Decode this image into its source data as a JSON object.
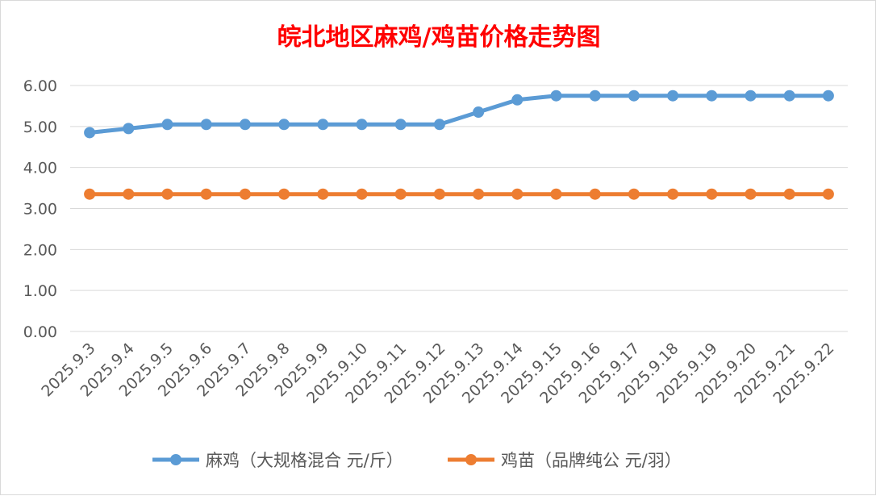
{
  "chart_data": {
    "type": "line",
    "title": "皖北地区麻鸡/鸡苗价格走势图",
    "categories": [
      "2025.9.3",
      "2025.9.4",
      "2025.9.5",
      "2025.9.6",
      "2025.9.7",
      "2025.9.8",
      "2025.9.9",
      "2025.9.10",
      "2025.9.11",
      "2025.9.12",
      "2025.9.13",
      "2025.9.14",
      "2025.9.15",
      "2025.9.16",
      "2025.9.17",
      "2025.9.18",
      "2025.9.19",
      "2025.9.20",
      "2025.9.21",
      "2025.9.22"
    ],
    "series": [
      {
        "name": "麻鸡（大规格混合 元/斤）",
        "color": "#5b9bd5",
        "values": [
          4.85,
          4.95,
          5.05,
          5.05,
          5.05,
          5.05,
          5.05,
          5.05,
          5.05,
          5.05,
          5.35,
          5.65,
          5.75,
          5.75,
          5.75,
          5.75,
          5.75,
          5.75,
          5.75,
          5.75
        ]
      },
      {
        "name": "鸡苗（品牌纯公 元/羽）",
        "color": "#ed7d31",
        "values": [
          3.35,
          3.35,
          3.35,
          3.35,
          3.35,
          3.35,
          3.35,
          3.35,
          3.35,
          3.35,
          3.35,
          3.35,
          3.35,
          3.35,
          3.35,
          3.35,
          3.35,
          3.35,
          3.35,
          3.35
        ]
      }
    ],
    "yticks": [
      "0.00",
      "1.00",
      "2.00",
      "3.00",
      "4.00",
      "5.00",
      "6.00"
    ],
    "ylim": [
      0,
      6
    ],
    "grid": true,
    "legend_position": "bottom",
    "title_color": "#ff0000"
  }
}
